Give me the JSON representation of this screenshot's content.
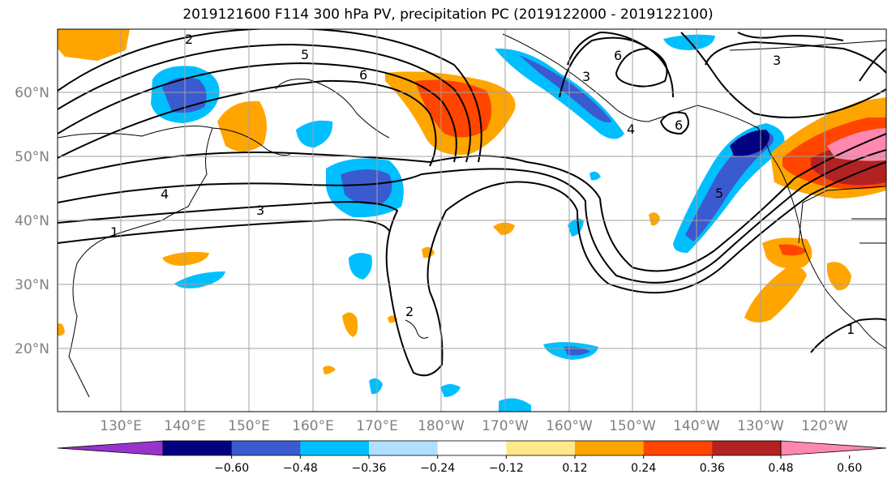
{
  "title": "2019121600 F114 300 hPa PV, precipitation PC (2019122000 - 2019122100)",
  "lat_labels": [
    "60°N",
    "50°N",
    "40°N",
    "30°N",
    "20°N"
  ],
  "lon_labels": [
    "130°E",
    "140°E",
    "150°E",
    "160°E",
    "170°E",
    "180°W",
    "170°W",
    "160°W",
    "150°W",
    "140°W",
    "130°W",
    "120°W"
  ],
  "colorbar": {
    "colors": [
      "#9933cc",
      "#000080",
      "#3a5bd0",
      "#00bfff",
      "#b0e0ff",
      "#ffffff",
      "#ffe98a",
      "#ffa500",
      "#ff4500",
      "#b22222",
      "#ff88b0"
    ],
    "tick_labels": [
      "−0.60",
      "−0.48",
      "−0.36",
      "−0.24",
      "−0.12",
      "0.12",
      "0.24",
      "0.36",
      "0.48",
      "0.60"
    ]
  },
  "contour_labels": [
    "2",
    "5",
    "6",
    "3",
    "4",
    "3",
    "6",
    "3",
    "6",
    "4",
    "5",
    "2",
    "1",
    "1"
  ]
}
